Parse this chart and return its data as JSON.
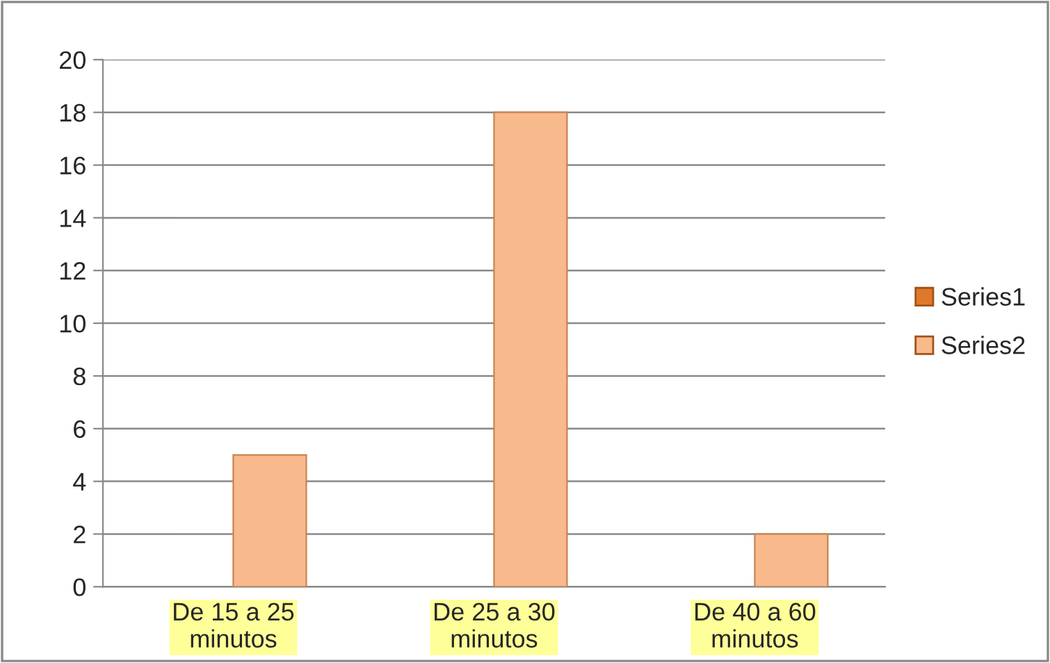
{
  "chart_data": {
    "type": "bar",
    "categories": [
      "De 15 a 25\nminutos",
      "De 25 a 30\nminutos",
      "De 40 a 60\nminutos"
    ],
    "series": [
      {
        "name": "Series1",
        "color": "#e0782c",
        "values": [
          null,
          null,
          null
        ]
      },
      {
        "name": "Series2",
        "color": "#f8b98c",
        "values": [
          5,
          18,
          2
        ]
      }
    ],
    "ylim": [
      0,
      20
    ],
    "yticks": [
      0,
      2,
      4,
      6,
      8,
      10,
      12,
      14,
      16,
      18,
      20
    ],
    "grid": "y",
    "legend": "right"
  }
}
